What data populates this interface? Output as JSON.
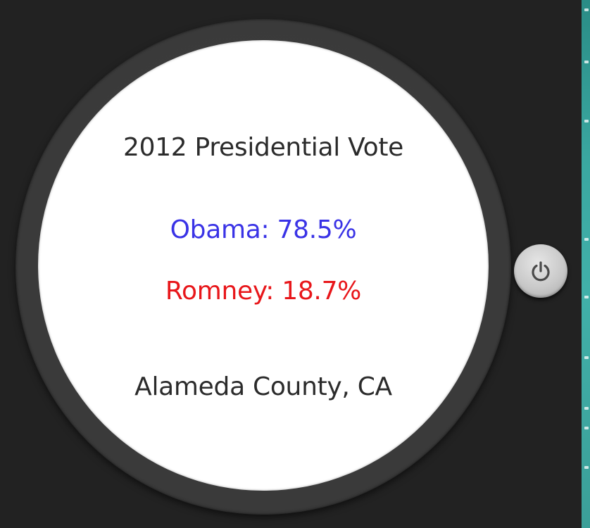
{
  "watch_face": {
    "title": "2012 Presidential Vote",
    "candidates": [
      {
        "label": "Obama: 78.5%",
        "color": "#3a33e6"
      },
      {
        "label": "Romney: 18.7%",
        "color": "#e8161a"
      }
    ],
    "location": "Alameda County, CA"
  },
  "controls": {
    "power_icon": "power-icon"
  }
}
